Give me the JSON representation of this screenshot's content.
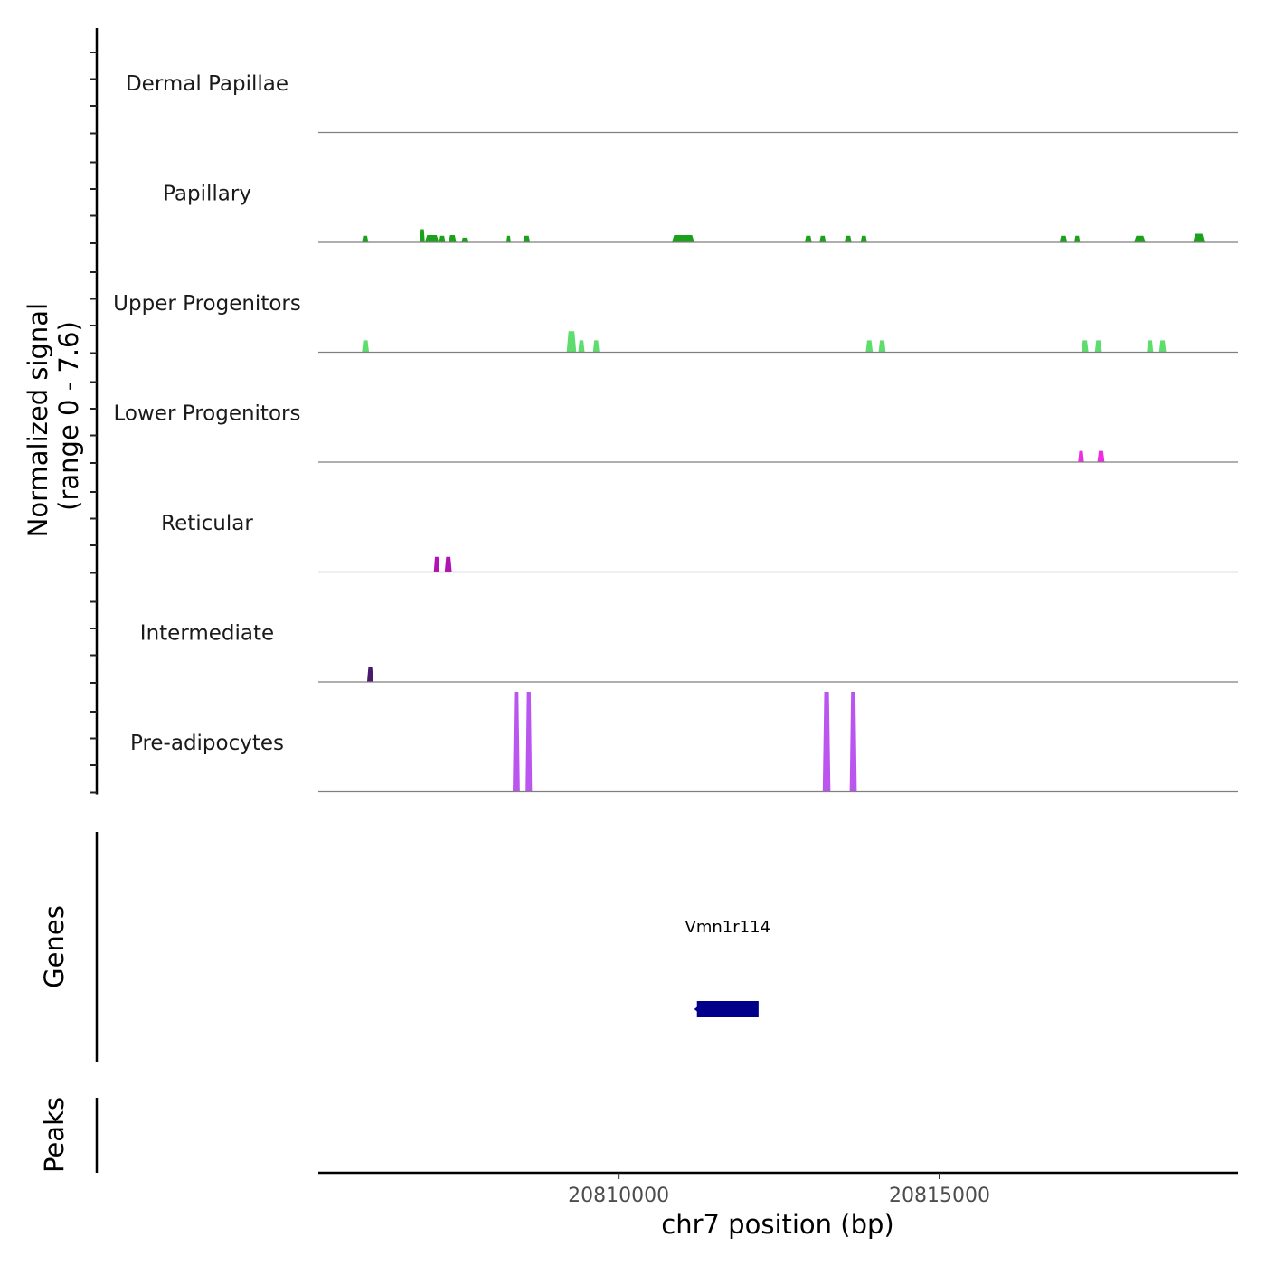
{
  "chart_data": {
    "type": "coverage",
    "signal_axis_label": "Normalized signal",
    "signal_range_label": "(range 0 - 7.6)",
    "signal_range": [
      0,
      7.6
    ],
    "xlabel": "chr7 position (bp)",
    "xlim": [
      20805320,
      20819650
    ],
    "xticks": [
      20810000,
      20815000
    ],
    "xtick_labels": [
      "20810000",
      "20815000"
    ],
    "tracks": [
      {
        "name": "Dermal Papillae",
        "color": "#1aa31a",
        "peaks": []
      },
      {
        "name": "Papillary",
        "color": "#1aa31a",
        "peaks": [
          {
            "start": 20806000,
            "end": 20806100,
            "value": 0.5
          },
          {
            "start": 20806900,
            "end": 20806980,
            "value": 1.0
          },
          {
            "start": 20806980,
            "end": 20807200,
            "value": 0.55
          },
          {
            "start": 20807200,
            "end": 20807300,
            "value": 0.5
          },
          {
            "start": 20807350,
            "end": 20807470,
            "value": 0.55
          },
          {
            "start": 20807550,
            "end": 20807650,
            "value": 0.35
          },
          {
            "start": 20808250,
            "end": 20808320,
            "value": 0.5
          },
          {
            "start": 20808510,
            "end": 20808620,
            "value": 0.5
          },
          {
            "start": 20810830,
            "end": 20811180,
            "value": 0.55
          },
          {
            "start": 20812900,
            "end": 20813010,
            "value": 0.5
          },
          {
            "start": 20813130,
            "end": 20813230,
            "value": 0.5
          },
          {
            "start": 20813520,
            "end": 20813630,
            "value": 0.5
          },
          {
            "start": 20813770,
            "end": 20813870,
            "value": 0.5
          },
          {
            "start": 20816870,
            "end": 20816990,
            "value": 0.5
          },
          {
            "start": 20817100,
            "end": 20817190,
            "value": 0.5
          },
          {
            "start": 20818030,
            "end": 20818210,
            "value": 0.5
          },
          {
            "start": 20818950,
            "end": 20819130,
            "value": 0.65
          }
        ]
      },
      {
        "name": "Upper Progenitors",
        "color": "#5edc6e",
        "peaks": [
          {
            "start": 20806000,
            "end": 20806110,
            "value": 0.9
          },
          {
            "start": 20809190,
            "end": 20809340,
            "value": 1.6
          },
          {
            "start": 20809370,
            "end": 20809470,
            "value": 0.9
          },
          {
            "start": 20809600,
            "end": 20809700,
            "value": 0.9
          },
          {
            "start": 20813850,
            "end": 20813960,
            "value": 0.9
          },
          {
            "start": 20814050,
            "end": 20814160,
            "value": 0.9
          },
          {
            "start": 20817210,
            "end": 20817320,
            "value": 0.9
          },
          {
            "start": 20817420,
            "end": 20817530,
            "value": 0.9
          },
          {
            "start": 20818230,
            "end": 20818330,
            "value": 0.9
          },
          {
            "start": 20818420,
            "end": 20818530,
            "value": 0.9
          }
        ]
      },
      {
        "name": "Lower Progenitors",
        "color": "#ee2ee0",
        "peaks": [
          {
            "start": 20817160,
            "end": 20817250,
            "value": 0.85
          },
          {
            "start": 20817460,
            "end": 20817570,
            "value": 0.85
          }
        ]
      },
      {
        "name": "Reticular",
        "color": "#b312b3",
        "peaks": [
          {
            "start": 20807120,
            "end": 20807210,
            "value": 1.15
          },
          {
            "start": 20807290,
            "end": 20807400,
            "value": 1.15
          }
        ]
      },
      {
        "name": "Intermediate",
        "color": "#4a1a6e",
        "peaks": [
          {
            "start": 20806080,
            "end": 20806180,
            "value": 1.1
          }
        ]
      },
      {
        "name": "Pre-adipocytes",
        "color": "#bb55f0",
        "peaks": [
          {
            "start": 20808350,
            "end": 20808460,
            "value": 7.6
          },
          {
            "start": 20808550,
            "end": 20808650,
            "value": 7.6
          },
          {
            "start": 20813180,
            "end": 20813300,
            "value": 7.6
          },
          {
            "start": 20813600,
            "end": 20813710,
            "value": 7.6
          }
        ]
      }
    ],
    "genes_label": "Genes",
    "genes": [
      {
        "name": "Vmn1r114",
        "start": 20811220,
        "end": 20812180,
        "strand": "-",
        "color": "#00008b"
      }
    ],
    "peaks_label": "Peaks",
    "peak_regions": []
  }
}
